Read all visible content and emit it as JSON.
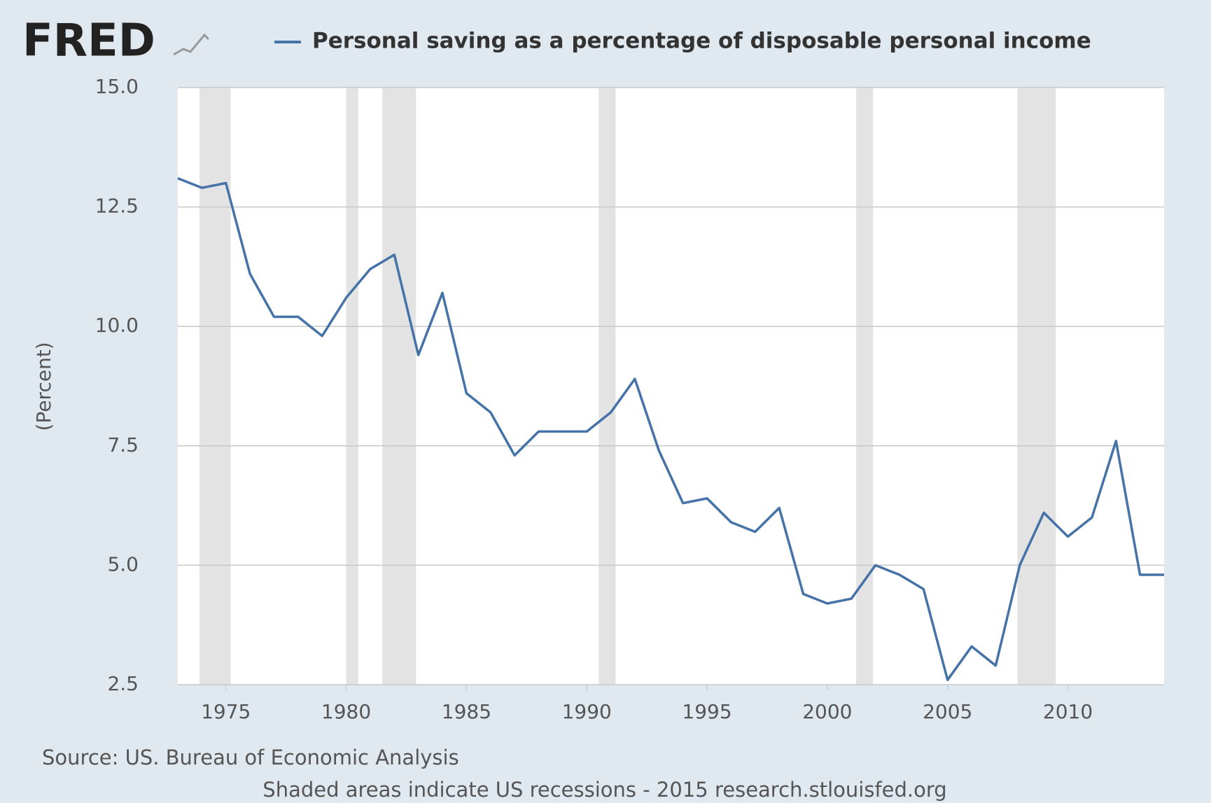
{
  "chart_data": {
    "type": "line",
    "logo": "FRED",
    "y_label": "(Percent)",
    "source": "Source: US. Bureau of Economic Analysis",
    "footer": "Shaded areas indicate US recessions - 2015 research.stlouisfed.org",
    "x": [
      1973,
      1974,
      1975,
      1976,
      1977,
      1978,
      1979,
      1980,
      1981,
      1982,
      1983,
      1984,
      1985,
      1986,
      1987,
      1988,
      1989,
      1990,
      1991,
      1992,
      1993,
      1994,
      1995,
      1996,
      1997,
      1998,
      1999,
      2000,
      2001,
      2002,
      2003,
      2004,
      2005,
      2006,
      2007,
      2008,
      2009,
      2010,
      2011,
      2012,
      2013,
      2014
    ],
    "series": [
      {
        "name": "Personal saving as a percentage of disposable personal income",
        "color": "#4572a7",
        "values": [
          13.1,
          12.9,
          13.0,
          11.1,
          10.2,
          10.2,
          9.8,
          10.6,
          11.2,
          11.5,
          9.4,
          10.7,
          8.6,
          8.2,
          7.3,
          7.8,
          7.8,
          7.8,
          8.2,
          8.9,
          7.4,
          6.3,
          6.4,
          5.9,
          5.7,
          6.2,
          4.4,
          4.2,
          4.3,
          5.0,
          4.8,
          4.5,
          2.6,
          3.3,
          2.9,
          5.0,
          6.1,
          5.6,
          6.0,
          7.6,
          4.8,
          4.8
        ]
      }
    ],
    "recessions": [
      [
        1973.9,
        1975.2
      ],
      [
        1980.0,
        1980.5
      ],
      [
        1981.5,
        1982.9
      ],
      [
        1990.5,
        1991.2
      ],
      [
        2001.2,
        2001.9
      ],
      [
        2007.9,
        2009.5
      ]
    ],
    "recession_color": "#e3e3e3",
    "xlim": [
      1973,
      2014
    ],
    "xticks": [
      1975,
      1980,
      1985,
      1990,
      1995,
      2000,
      2005,
      2010
    ],
    "ylim": [
      2.5,
      15
    ],
    "yticks": [
      {
        "value": 2.5,
        "label": "2.5"
      },
      {
        "value": 5,
        "label": "5.0"
      },
      {
        "value": 7.5,
        "label": "7.5"
      },
      {
        "value": 10,
        "label": "10.0"
      },
      {
        "value": 12.5,
        "label": "12.5"
      },
      {
        "value": 15,
        "label": "15.0"
      }
    ],
    "grid": true
  }
}
